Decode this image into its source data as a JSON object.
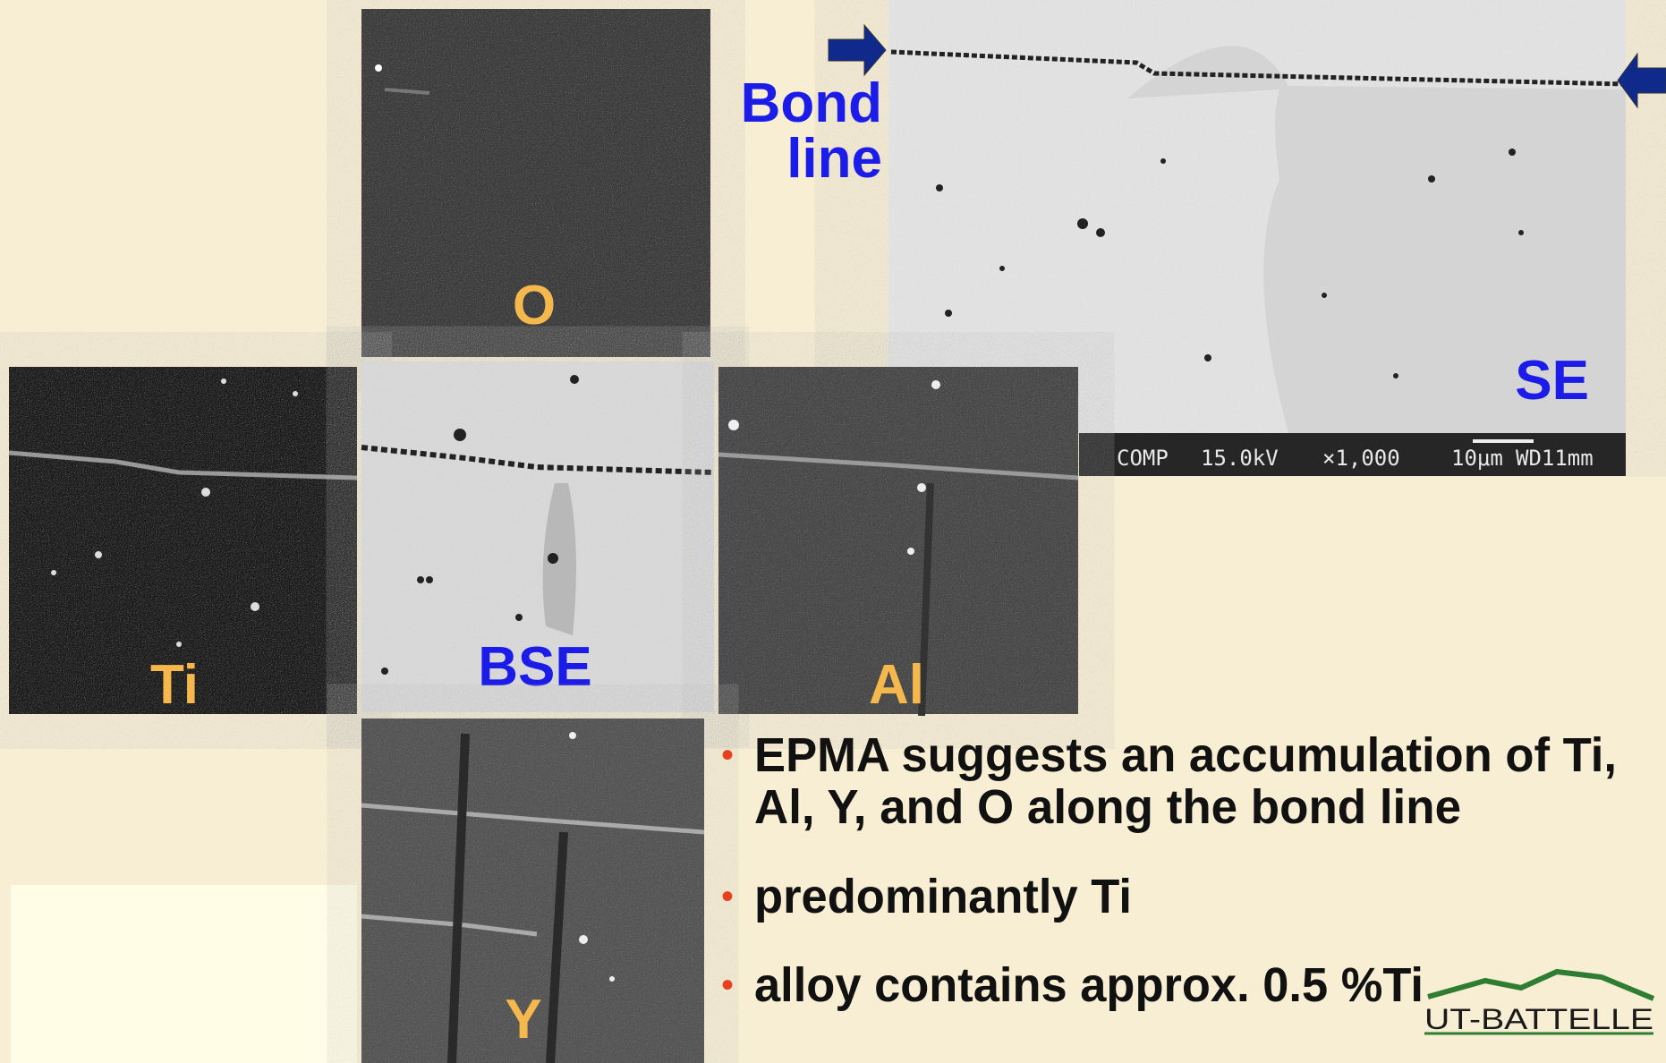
{
  "panels": {
    "o": "O",
    "se": "SE",
    "ti": "Ti",
    "bse": "BSE",
    "al": "Al",
    "y": "Y"
  },
  "bond_label": [
    "Bond",
    "line"
  ],
  "scale_bar": [
    "COMP",
    "15.0kV",
    "×1,000",
    "10μm",
    "WD11mm"
  ],
  "bullets": [
    [
      "EPMA suggests an accumulation of Ti,",
      "Al, Y, and O along the bond line"
    ],
    [
      "predominantly Ti"
    ],
    [
      "alloy contains approx. 0.5 %Ti"
    ]
  ],
  "logo": "UT-BATTELLE"
}
